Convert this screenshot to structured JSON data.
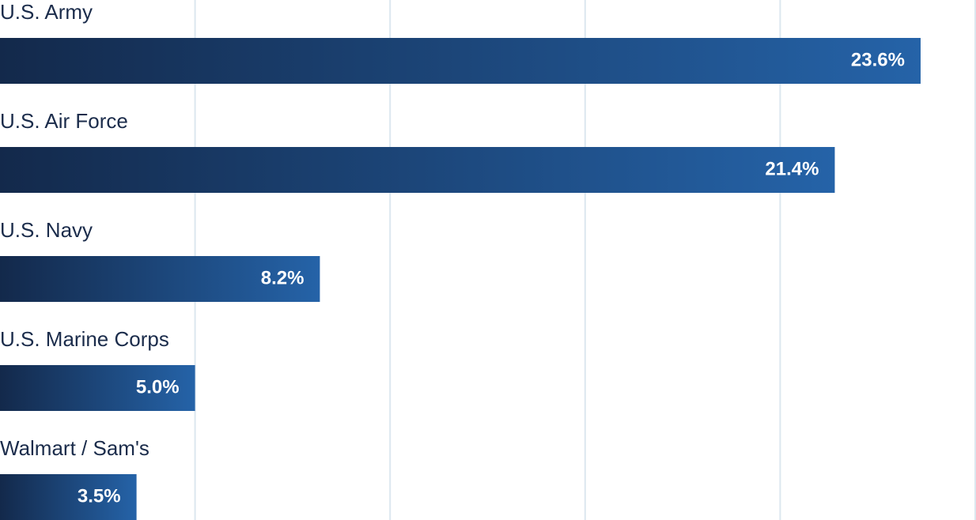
{
  "chart_data": {
    "type": "bar",
    "orientation": "horizontal",
    "categories": [
      "U.S. Army",
      "U.S. Air Force",
      "U.S. Navy",
      "U.S. Marine Corps",
      "Walmart / Sam's"
    ],
    "values": [
      23.6,
      21.4,
      8.2,
      5.0,
      3.5
    ],
    "value_labels": [
      "23.6%",
      "21.4%",
      "8.2%",
      "5.0%",
      "3.5%"
    ],
    "gradient": [
      "#13294b",
      "#2563a8"
    ],
    "xlim": [
      0,
      25
    ],
    "xticks": [
      5,
      10,
      15,
      20,
      25
    ],
    "grid": true
  }
}
